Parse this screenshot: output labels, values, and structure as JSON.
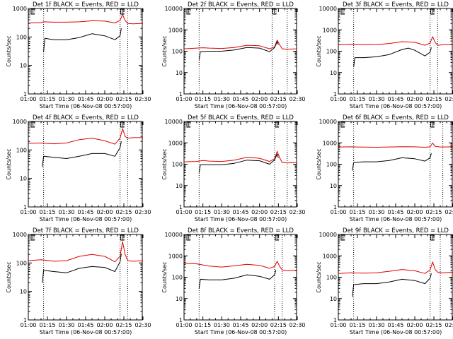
{
  "colors": {
    "events": "#000000",
    "lld": "#e00000"
  },
  "chart_data": [
    {
      "type": "line",
      "title": "Det 1f BLACK = Events, RED = LLD",
      "xlabel": "Start Time (06-Nov-08 00:57:00)",
      "ylabel": "Counts/sec",
      "yscale": "log",
      "ylim": [
        1,
        1000
      ],
      "xlim": [
        "01:00",
        "02:30"
      ],
      "x_ticks": [
        "01:00",
        "01:15",
        "01:30",
        "01:45",
        "02:00",
        "02:15",
        "02:30"
      ],
      "y_ticks": [
        "1",
        "10",
        "100",
        "1000"
      ],
      "markers": {
        "dotted_lines": [
          "01:12",
          "02:12",
          "02:18"
        ],
        "letters": [
          "E",
          "E"
        ]
      },
      "series": [
        {
          "name": "LLD",
          "x": [
            "01:00",
            "01:10",
            "01:12",
            "01:20",
            "01:30",
            "01:40",
            "01:50",
            "02:00",
            "02:08",
            "02:12",
            "02:14",
            "02:16",
            "02:18",
            "02:22",
            "02:30"
          ],
          "values": [
            310,
            320,
            340,
            330,
            330,
            340,
            370,
            360,
            310,
            380,
            610,
            380,
            300,
            290,
            300
          ]
        },
        {
          "name": "Events",
          "x": [
            "01:12",
            "01:13",
            "01:20",
            "01:30",
            "01:40",
            "01:50",
            "02:00",
            "02:08",
            "02:12",
            "02:13"
          ],
          "values": [
            30,
            90,
            80,
            80,
            95,
            130,
            110,
            80,
            110,
            200
          ]
        }
      ]
    },
    {
      "type": "line",
      "title": "Det 2f BLACK = Events, RED = LLD",
      "xlabel": "Start Time (06-Nov-08 00:57:00)",
      "ylabel": "Counts/sec",
      "yscale": "log",
      "ylim": [
        1,
        10000
      ],
      "xlim": [
        "01:00",
        "02:30"
      ],
      "x_ticks": [
        "01:00",
        "01:15",
        "01:30",
        "01:45",
        "02:00",
        "02:15",
        "02:30"
      ],
      "y_ticks": [
        "1",
        "10",
        "100",
        "1000",
        "10000"
      ],
      "markers": {
        "dotted_lines": [
          "01:12",
          "02:10",
          "02:22"
        ],
        "letters": [
          "E",
          "E"
        ]
      },
      "series": [
        {
          "name": "LLD",
          "x": [
            "01:00",
            "01:10",
            "01:15",
            "01:20",
            "01:30",
            "01:40",
            "01:50",
            "02:00",
            "02:08",
            "02:12",
            "02:14",
            "02:16",
            "02:18",
            "02:22",
            "02:30"
          ],
          "values": [
            130,
            140,
            145,
            140,
            135,
            150,
            190,
            180,
            130,
            160,
            330,
            200,
            130,
            125,
            130
          ]
        },
        {
          "name": "Events",
          "x": [
            "01:12",
            "01:13",
            "01:20",
            "01:30",
            "01:40",
            "01:50",
            "02:00",
            "02:08",
            "02:12",
            "02:14",
            "02:15"
          ],
          "values": [
            40,
            95,
            100,
            100,
            115,
            150,
            140,
            95,
            150,
            280,
            200
          ]
        }
      ]
    },
    {
      "type": "line",
      "title": "Det 3f BLACK = Events, RED = LLD",
      "xlabel": "Start Time (06-Nov-08 00:57:00)",
      "ylabel": "Counts/sec",
      "yscale": "log",
      "ylim": [
        1,
        10000
      ],
      "xlim": [
        "01:00",
        "02:30"
      ],
      "x_ticks": [
        "01:00",
        "01:15",
        "01:30",
        "01:45",
        "02:00",
        "02:15",
        "02:30"
      ],
      "y_ticks": [
        "1",
        "10",
        "100",
        "1000",
        "10000"
      ],
      "markers": {
        "dotted_lines": [
          "01:12",
          "02:12",
          "02:18"
        ],
        "letters": [
          "E",
          "E"
        ]
      },
      "series": [
        {
          "name": "LLD",
          "x": [
            "01:00",
            "01:10",
            "01:20",
            "01:30",
            "01:40",
            "01:50",
            "02:00",
            "02:08",
            "02:12",
            "02:14",
            "02:16",
            "02:18",
            "02:22",
            "02:30"
          ],
          "values": [
            200,
            210,
            200,
            205,
            230,
            280,
            260,
            190,
            240,
            480,
            260,
            190,
            200,
            210
          ]
        },
        {
          "name": "Events",
          "x": [
            "01:12",
            "01:13",
            "01:20",
            "01:30",
            "01:40",
            "01:50",
            "01:55",
            "02:00",
            "02:08",
            "02:12",
            "02:13"
          ],
          "values": [
            18,
            50,
            50,
            55,
            70,
            120,
            140,
            110,
            60,
            90,
            150
          ]
        }
      ]
    },
    {
      "type": "line",
      "title": "Det 4f BLACK = Events, RED = LLD",
      "xlabel": "Start Time (06-Nov-08 00:57:00)",
      "ylabel": "Counts/sec",
      "yscale": "log",
      "ylim": [
        1,
        1000
      ],
      "xlim": [
        "01:00",
        "02:30"
      ],
      "x_ticks": [
        "01:00",
        "01:15",
        "01:30",
        "01:45",
        "02:00",
        "02:15",
        "02:30"
      ],
      "y_ticks": [
        "1",
        "10",
        "100",
        "1000"
      ],
      "markers": {
        "dotted_lines": [
          "01:12",
          "02:12",
          "02:18"
        ],
        "letters": [
          "E",
          "E"
        ]
      },
      "series": [
        {
          "name": "LLD",
          "x": [
            "01:00",
            "01:10",
            "01:20",
            "01:30",
            "01:40",
            "01:50",
            "02:00",
            "02:08",
            "02:12",
            "02:14",
            "02:16",
            "02:18",
            "02:22",
            "02:30"
          ],
          "values": [
            170,
            175,
            165,
            175,
            230,
            260,
            210,
            160,
            260,
            560,
            300,
            260,
            270,
            270
          ]
        },
        {
          "name": "Events",
          "x": [
            "01:11",
            "01:12",
            "01:20",
            "01:30",
            "01:40",
            "01:50",
            "02:00",
            "02:08",
            "02:12",
            "02:13"
          ],
          "values": [
            25,
            60,
            55,
            50,
            60,
            75,
            75,
            60,
            120,
            200
          ]
        }
      ]
    },
    {
      "type": "line",
      "title": "Det 5f BLACK = Events, RED = LLD",
      "xlabel": "Start Time (06-Nov-08 00:57:00)",
      "ylabel": "Counts/sec",
      "yscale": "log",
      "ylim": [
        1,
        10000
      ],
      "xlim": [
        "01:00",
        "02:30"
      ],
      "x_ticks": [
        "01:00",
        "01:15",
        "01:30",
        "01:45",
        "02:00",
        "02:15",
        "02:30"
      ],
      "y_ticks": [
        "1",
        "10",
        "100",
        "1000",
        "10000"
      ],
      "markers": {
        "dotted_lines": [
          "01:12",
          "02:12",
          "02:22"
        ],
        "letters": [
          "E",
          "E"
        ]
      },
      "series": [
        {
          "name": "LLD",
          "x": [
            "01:00",
            "01:10",
            "01:15",
            "01:20",
            "01:30",
            "01:40",
            "01:50",
            "02:00",
            "02:08",
            "02:12",
            "02:14",
            "02:16",
            "02:18",
            "02:22",
            "02:30"
          ],
          "values": [
            130,
            135,
            150,
            140,
            135,
            155,
            210,
            190,
            135,
            180,
            400,
            200,
            120,
            115,
            120
          ]
        },
        {
          "name": "Events",
          "x": [
            "01:12",
            "01:13",
            "01:20",
            "01:30",
            "01:40",
            "01:50",
            "02:00",
            "02:08",
            "02:12",
            "02:14",
            "02:15"
          ],
          "values": [
            40,
            95,
            95,
            95,
            110,
            155,
            145,
            100,
            160,
            300,
            200
          ]
        }
      ]
    },
    {
      "type": "line",
      "title": "Det 6f BLACK = Events, RED = LLD",
      "xlabel": "Start Time (06-Nov-08 00:57:00)",
      "ylabel": "Counts/sec",
      "yscale": "log",
      "ylim": [
        1,
        10000
      ],
      "xlim": [
        "01:00",
        "02:30"
      ],
      "x_ticks": [
        "01:00",
        "01:15",
        "01:30",
        "01:45",
        "02:00",
        "02:15",
        "02:30"
      ],
      "y_ticks": [
        "1",
        "10",
        "100",
        "1000",
        "10000"
      ],
      "markers": {
        "dotted_lines": [
          "01:12",
          "02:12",
          "02:22"
        ],
        "letters": [
          "E",
          "E"
        ]
      },
      "series": [
        {
          "name": "LLD",
          "x": [
            "01:00",
            "01:10",
            "01:20",
            "01:30",
            "01:40",
            "01:50",
            "02:00",
            "02:08",
            "02:12",
            "02:14",
            "02:16",
            "02:20",
            "02:30"
          ],
          "values": [
            640,
            650,
            630,
            620,
            640,
            660,
            650,
            620,
            650,
            980,
            680,
            640,
            650
          ]
        },
        {
          "name": "Events",
          "x": [
            "01:11",
            "01:12",
            "01:20",
            "01:30",
            "01:40",
            "01:50",
            "02:00",
            "02:08",
            "02:12",
            "02:13"
          ],
          "values": [
            50,
            120,
            130,
            130,
            150,
            200,
            180,
            140,
            200,
            320
          ]
        }
      ]
    },
    {
      "type": "line",
      "title": "Det 7f BLACK = Events, RED = LLD",
      "xlabel": "Start Time (06-Nov-08 00:57:00)",
      "ylabel": "Counts/sec",
      "yscale": "log",
      "ylim": [
        1,
        1000
      ],
      "xlim": [
        "01:00",
        "02:30"
      ],
      "x_ticks": [
        "01:00",
        "01:15",
        "01:30",
        "01:45",
        "02:00",
        "02:15",
        "02:30"
      ],
      "y_ticks": [
        "1",
        "10",
        "100",
        "1000"
      ],
      "markers": {
        "dotted_lines": [
          "01:12",
          "02:12",
          "02:18"
        ],
        "letters": [
          "E",
          "E"
        ]
      },
      "series": [
        {
          "name": "LLD",
          "x": [
            "01:00",
            "01:10",
            "01:20",
            "01:30",
            "01:40",
            "01:50",
            "02:00",
            "02:08",
            "02:12",
            "02:14",
            "02:16",
            "02:18",
            "02:22",
            "02:30"
          ],
          "values": [
            120,
            130,
            115,
            120,
            170,
            200,
            170,
            110,
            170,
            560,
            200,
            120,
            115,
            120
          ]
        },
        {
          "name": "Events",
          "x": [
            "01:11",
            "01:12",
            "01:20",
            "01:30",
            "01:40",
            "01:50",
            "02:00",
            "02:08",
            "02:12",
            "02:13"
          ],
          "values": [
            20,
            55,
            50,
            45,
            65,
            75,
            70,
            50,
            110,
            210
          ]
        }
      ]
    },
    {
      "type": "line",
      "title": "Det 8f BLACK = Events, RED = LLD",
      "xlabel": "Start Time (06-Nov-08 00:57:00)",
      "ylabel": "Counts/sec",
      "yscale": "log",
      "ylim": [
        1,
        10000
      ],
      "xlim": [
        "01:00",
        "02:30"
      ],
      "x_ticks": [
        "01:00",
        "01:15",
        "01:30",
        "01:45",
        "02:00",
        "02:15",
        "02:30"
      ],
      "y_ticks": [
        "1",
        "10",
        "100",
        "1000",
        "10000"
      ],
      "markers": {
        "dotted_lines": [
          "01:12",
          "02:12",
          "02:18"
        ],
        "letters": [
          "E",
          "E"
        ]
      },
      "series": [
        {
          "name": "LLD",
          "x": [
            "01:00",
            "01:10",
            "01:20",
            "01:30",
            "01:40",
            "01:50",
            "02:00",
            "02:08",
            "02:12",
            "02:14",
            "02:16",
            "02:18",
            "02:22",
            "02:30"
          ],
          "values": [
            450,
            420,
            330,
            300,
            340,
            400,
            360,
            260,
            320,
            560,
            320,
            220,
            200,
            210
          ]
        },
        {
          "name": "Events",
          "x": [
            "01:12",
            "01:13",
            "01:20",
            "01:30",
            "01:40",
            "01:50",
            "02:00",
            "02:08",
            "02:12",
            "02:13"
          ],
          "values": [
            30,
            80,
            75,
            75,
            90,
            130,
            110,
            80,
            130,
            220
          ]
        }
      ]
    },
    {
      "type": "line",
      "title": "Det 9f BLACK = Events, RED = LLD",
      "xlabel": "Start Time (06-Nov-08 00:57:00)",
      "ylabel": "Counts/sec",
      "yscale": "log",
      "ylim": [
        1,
        10000
      ],
      "xlim": [
        "01:00",
        "02:30"
      ],
      "x_ticks": [
        "01:00",
        "01:15",
        "01:30",
        "01:45",
        "02:00",
        "02:15",
        "02:30"
      ],
      "y_ticks": [
        "1",
        "10",
        "100",
        "1000",
        "10000"
      ],
      "markers": {
        "dotted_lines": [
          "01:12",
          "02:12",
          "02:20"
        ],
        "letters": [
          "E",
          "E"
        ]
      },
      "series": [
        {
          "name": "LLD",
          "x": [
            "01:00",
            "01:10",
            "01:20",
            "01:30",
            "01:40",
            "01:50",
            "02:00",
            "02:08",
            "02:12",
            "02:14",
            "02:16",
            "02:18",
            "02:22",
            "02:30"
          ],
          "values": [
            150,
            160,
            155,
            160,
            190,
            230,
            200,
            150,
            220,
            520,
            230,
            170,
            160,
            170
          ]
        },
        {
          "name": "Events",
          "x": [
            "01:11",
            "01:12",
            "01:20",
            "01:30",
            "01:40",
            "01:50",
            "02:00",
            "02:08",
            "02:12",
            "02:13"
          ],
          "values": [
            12,
            45,
            50,
            50,
            60,
            80,
            70,
            50,
            90,
            150
          ]
        }
      ]
    }
  ]
}
